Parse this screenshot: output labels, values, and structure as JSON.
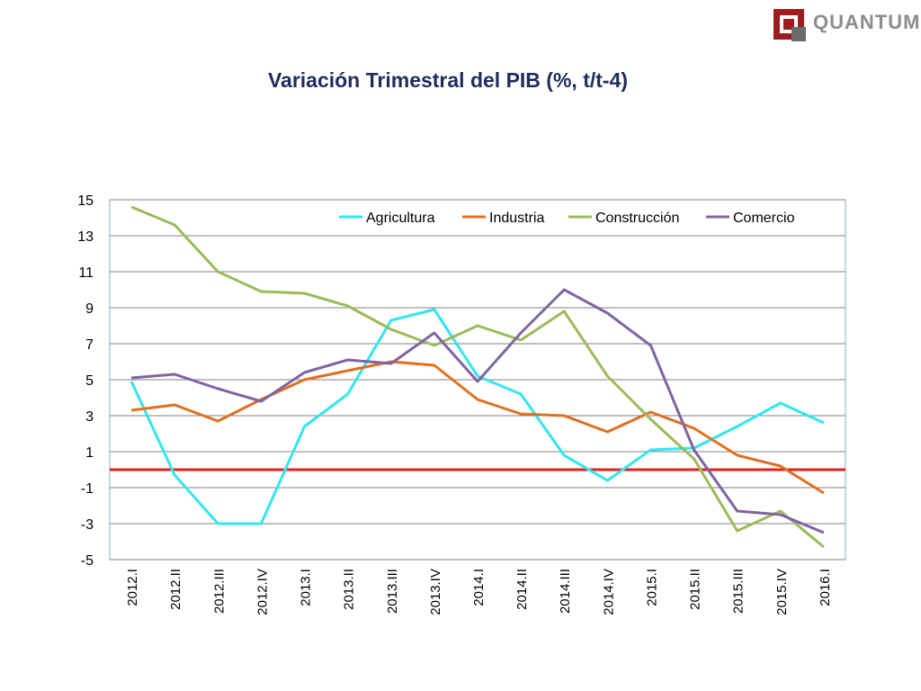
{
  "brand": {
    "name": "QUANTUM"
  },
  "colors": {
    "title": "#1f2d5c",
    "zero_line": "#e3211c",
    "grid": "#808080"
  },
  "chart_data": {
    "type": "line",
    "title": "Variación Trimestral del PIB (%, t/t-4)",
    "xlabel": "",
    "ylabel": "",
    "ylim": [
      -5,
      15
    ],
    "yticks": [
      15,
      13,
      11,
      9,
      7,
      5,
      3,
      1,
      -1,
      -3,
      -5
    ],
    "grid": true,
    "legend_position": "top",
    "reference_line": {
      "y": 0,
      "color": "#e3211c"
    },
    "categories": [
      "2012.I",
      "2012.II",
      "2012.III",
      "2012.IV",
      "2013.I",
      "2013.II",
      "2013.III",
      "2013.IV",
      "2014.I",
      "2014.II",
      "2014.III",
      "2014.IV",
      "2015.I",
      "2015.II",
      "2015.III",
      "2015.IV",
      "2016.I"
    ],
    "series": [
      {
        "name": "Agricultura",
        "color": "#33e6f0",
        "values": [
          4.9,
          -0.3,
          -3.0,
          -3.0,
          2.4,
          4.2,
          8.3,
          8.9,
          5.2,
          4.2,
          0.8,
          -0.6,
          1.1,
          1.2,
          2.4,
          3.7,
          2.6
        ]
      },
      {
        "name": "Industria",
        "color": "#e07020",
        "values": [
          3.3,
          3.6,
          2.7,
          3.9,
          5.0,
          5.5,
          6.0,
          5.8,
          3.9,
          3.1,
          3.0,
          2.1,
          3.2,
          2.3,
          0.8,
          0.2,
          -1.3
        ]
      },
      {
        "name": "Construcción",
        "color": "#9bbb59",
        "values": [
          14.6,
          13.6,
          11.0,
          9.9,
          9.8,
          9.1,
          7.8,
          6.9,
          8.0,
          7.2,
          8.8,
          5.2,
          2.8,
          0.6,
          -3.4,
          -2.3,
          -4.3
        ]
      },
      {
        "name": "Comercio",
        "color": "#8064a2",
        "values": [
          5.1,
          5.3,
          4.5,
          3.8,
          5.4,
          6.1,
          5.9,
          7.6,
          4.9,
          7.6,
          10.0,
          8.7,
          6.9,
          1.1,
          -2.3,
          -2.5,
          -3.5
        ]
      }
    ]
  }
}
